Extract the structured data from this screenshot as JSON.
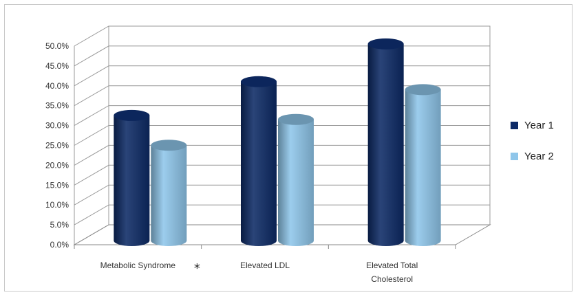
{
  "chart_data": {
    "type": "bar",
    "style": "3d-cylinder",
    "categories": [
      "Metabolic Syndrome",
      "Elevated LDL",
      "Elevated Total Cholesterol"
    ],
    "category_lines": [
      [
        "Metabolic Syndrome"
      ],
      [
        "Elevated LDL"
      ],
      [
        "Elevated Total",
        "Cholesterol"
      ]
    ],
    "significance_marker": {
      "category": "Metabolic Syndrome",
      "text": "*"
    },
    "series": [
      {
        "name": "Year 1",
        "color": "#0d2a66",
        "values": [
          31.5,
          40.0,
          49.5
        ]
      },
      {
        "name": "Year 2",
        "color": "#8fc6ea",
        "values": [
          24.0,
          30.5,
          38.0
        ]
      }
    ],
    "ylim": [
      0,
      50
    ],
    "yticks": [
      0,
      5,
      10,
      15,
      20,
      25,
      30,
      35,
      40,
      45,
      50
    ],
    "ytick_labels": [
      "0.0%",
      "5.0%",
      "10.0%",
      "15.0%",
      "20.0%",
      "25.0%",
      "30.0%",
      "35.0%",
      "40.0%",
      "45.0%",
      "50.0%"
    ],
    "grid": true,
    "legend": "right",
    "title": "",
    "xlabel": "",
    "ylabel": ""
  }
}
